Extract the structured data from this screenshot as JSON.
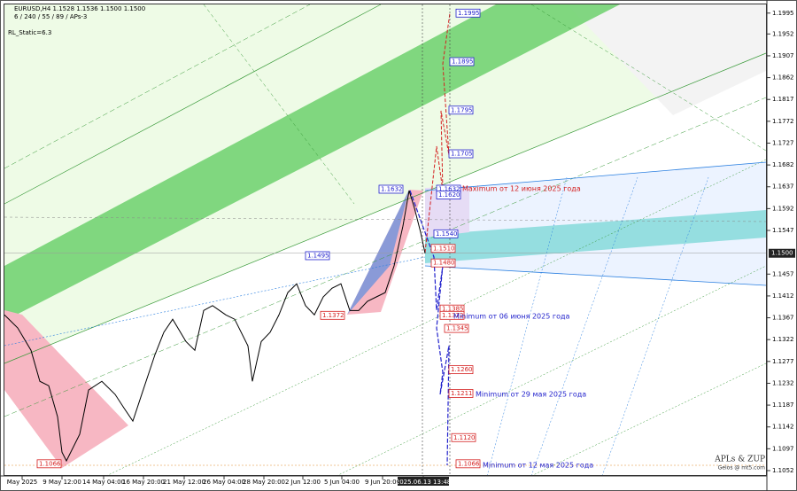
{
  "chart_data": {
    "type": "line",
    "title": "EURUSD,H4  1.1528 1.1536 1.1500 1.1500",
    "info_lines": [
      "6 / 240 / 55 / 89 / APs-3",
      "RL_Static=6.3"
    ],
    "x": [
      0,
      1.5,
      3,
      4,
      5,
      6,
      6.5,
      7,
      8.5,
      9.5,
      11,
      12.5,
      13.5,
      14.5,
      15.5,
      17,
      18,
      19,
      20.5,
      21.5,
      22.5,
      23.5,
      25,
      26,
      27.5,
      28,
      29,
      30,
      31,
      32,
      33,
      34,
      35,
      36,
      37,
      38,
      39,
      40,
      41,
      42,
      43,
      44,
      45,
      45.7,
      46.3,
      47,
      47.5
    ],
    "values": [
      1.1373,
      1.1346,
      1.13,
      1.1236,
      1.1227,
      1.1163,
      1.109,
      1.1072,
      1.1127,
      1.1218,
      1.1236,
      1.1209,
      1.1181,
      1.1154,
      1.1209,
      1.1291,
      1.1337,
      1.1364,
      1.1318,
      1.13,
      1.1382,
      1.1392,
      1.1373,
      1.1364,
      1.1309,
      1.1236,
      1.1318,
      1.1337,
      1.1373,
      1.1419,
      1.1437,
      1.1392,
      1.1373,
      1.141,
      1.1428,
      1.1437,
      1.1382,
      1.1382,
      1.1401,
      1.141,
      1.1419,
      1.1474,
      1.1556,
      1.1629,
      1.1593,
      1.1543,
      1.15
    ],
    "color": "#000000",
    "xlim": [
      0,
      86
    ],
    "xticks": [
      {
        "value": 2,
        "label": "May 2025"
      },
      {
        "value": 6.5,
        "label": "9 May 12:00"
      },
      {
        "value": 11.2,
        "label": "14 May 04:00"
      },
      {
        "value": 15.7,
        "label": "16 May 20:00"
      },
      {
        "value": 20.3,
        "label": "21 May 12:00"
      },
      {
        "value": 24.8,
        "label": "26 May 04:00"
      },
      {
        "value": 29.3,
        "label": "28 May 20:00"
      },
      {
        "value": 33.7,
        "label": "2 Jun 12:00"
      },
      {
        "value": 38.1,
        "label": "5 Jun 04:00"
      },
      {
        "value": 42.7,
        "label": "9 Jun 20:00"
      },
      {
        "value": 47.3,
        "label": "2025.06.13 13:48"
      }
    ],
    "ylim": [
      1.1041,
      1.2022
    ],
    "yticks": [
      1.1995,
      1.1952,
      1.1907,
      1.1862,
      1.1817,
      1.1772,
      1.1727,
      1.1682,
      1.1637,
      1.1592,
      1.1547,
      1.1457,
      1.1412,
      1.1367,
      1.1322,
      1.1277,
      1.1232,
      1.1187,
      1.1142,
      1.1097,
      1.1052
    ],
    "current_price": {
      "value": 1.15,
      "label": "1.1500"
    },
    "levels": [
      1.1995,
      1.1895,
      1.1795,
      1.1705,
      1.1632,
      1.1632,
      {
        "value": 1.162,
        "label": "1.1620"
      },
      {
        "value": 1.154,
        "label": "1.1540"
      },
      {
        "value": 1.151,
        "label": "1.1510"
      },
      1.1495,
      {
        "value": 1.148,
        "label": "1.1480"
      },
      1.1385,
      1.1372,
      1.1372,
      1.1345,
      {
        "value": 1.126,
        "label": "1.1260"
      },
      1.1211,
      {
        "value": 1.112,
        "label": "1.1120"
      },
      1.1066,
      1.1066
    ],
    "level_colors": [
      "#2222cc",
      "#2222cc",
      "#2222cc",
      "#2222cc",
      "#2222cc",
      "#2222cc",
      "#2222cc",
      "#2222cc",
      "#d42020",
      "#2222cc",
      "#d42020",
      "#d42020",
      "#d42020",
      "#d42020",
      "#d42020",
      "#d42020",
      "#d42020",
      "#d42020",
      "#d42020",
      "#d42020"
    ],
    "annotations": [
      "Maximum от 12 июня 2025 года",
      "Minimum от 06 июня 2025 года",
      "Minimum от 29 мая 2025 года",
      "Minimum от 12 мая 2025 года"
    ],
    "annotation_colors": [
      "#d42020",
      "#2222cc",
      "#2222cc",
      "#2222cc"
    ],
    "watermark": [
      "APLs & ZUP",
      "Gelos @ mt5.com"
    ]
  }
}
